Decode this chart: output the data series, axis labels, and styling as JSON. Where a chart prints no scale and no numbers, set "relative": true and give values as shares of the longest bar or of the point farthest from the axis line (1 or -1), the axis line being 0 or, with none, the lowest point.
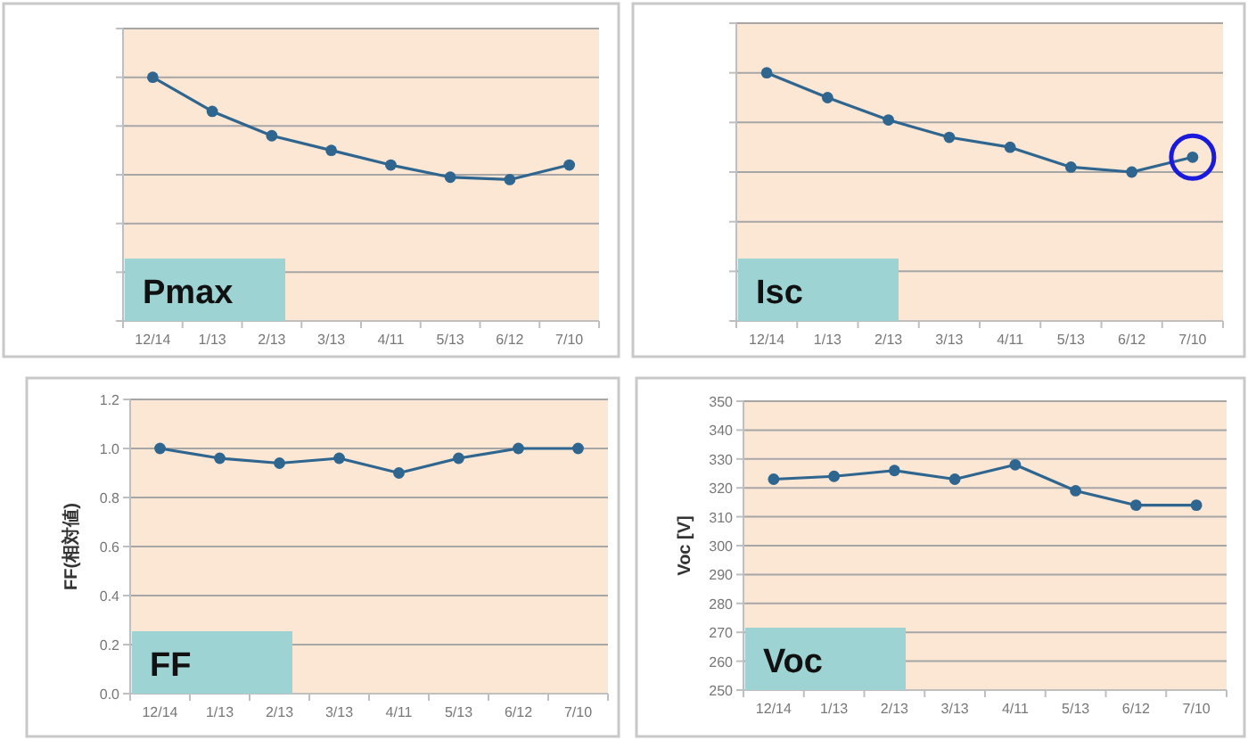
{
  "chart_data": [
    {
      "type": "line",
      "title": "Pmax",
      "categories": [
        "12/14",
        "1/13",
        "2/13",
        "3/13",
        "4/11",
        "5/13",
        "6/12",
        "7/10"
      ],
      "relative": true,
      "grid": "y",
      "marker": "circle",
      "line_style": "solid",
      "series": [
        {
          "color": "#2f6690",
          "values": [
            1,
            0.86,
            0.76,
            0.7,
            0.64,
            0.59,
            0.58,
            0.64
          ]
        }
      ]
    },
    {
      "type": "line",
      "title": "Isc",
      "categories": [
        "12/14",
        "1/13",
        "2/13",
        "3/13",
        "4/11",
        "5/13",
        "6/12",
        "7/10"
      ],
      "relative": true,
      "grid": "y",
      "marker": "circle",
      "line_style": "solid",
      "series": [
        {
          "color": "#2f6690",
          "values": [
            1,
            0.9,
            0.81,
            0.74,
            0.7,
            0.62,
            0.6,
            0.66
          ]
        }
      ]
    },
    {
      "type": "line",
      "title": "FF",
      "ylabel": "FF(相対値)",
      "categories": [
        "12/14",
        "1/13",
        "2/13",
        "3/13",
        "4/11",
        "5/13",
        "6/12",
        "7/10"
      ],
      "ylim": [
        0,
        1.2
      ],
      "yticks": [
        {
          "value": 0,
          "label": "0.0"
        },
        {
          "value": 0.2,
          "label": "0.2"
        },
        {
          "value": 0.4,
          "label": "0.4"
        },
        {
          "value": 0.6,
          "label": "0.6"
        },
        {
          "value": 0.8,
          "label": "0.8"
        },
        {
          "value": 1,
          "label": "1.0"
        },
        {
          "value": 1.2,
          "label": "1.2"
        }
      ],
      "grid": "y",
      "marker": "circle",
      "line_style": "solid",
      "series": [
        {
          "color": "#2f6690",
          "values": [
            1.0,
            0.96,
            0.94,
            0.96,
            0.9,
            0.96,
            1.0,
            1.0
          ]
        }
      ]
    },
    {
      "type": "line",
      "title": "Voc",
      "ylabel": "Voc [V]",
      "categories": [
        "12/14",
        "1/13",
        "2/13",
        "3/13",
        "4/11",
        "5/13",
        "6/12",
        "7/10"
      ],
      "ylim": [
        250,
        350
      ],
      "yticks": [
        250,
        260,
        270,
        280,
        290,
        300,
        310,
        320,
        330,
        340,
        350
      ],
      "grid": "y",
      "marker": "circle",
      "line_style": "solid",
      "series": [
        {
          "color": "#2f6690",
          "values": [
            323,
            324,
            326,
            323,
            328,
            319,
            314,
            314
          ]
        }
      ]
    }
  ]
}
